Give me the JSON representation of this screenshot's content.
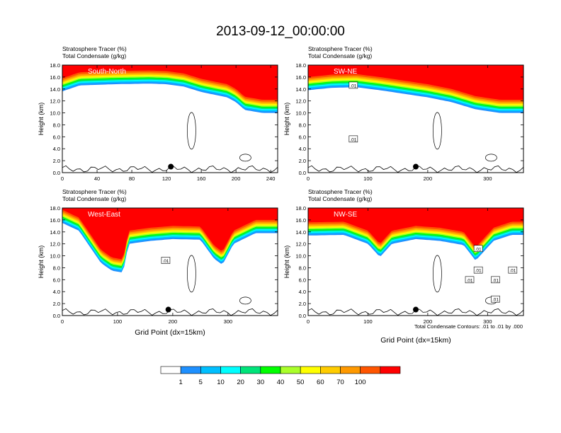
{
  "figure": {
    "title": "2013-09-12_00:00:00",
    "contour_note": "Total Condensate Contours: .01 to .01 by .000"
  },
  "chart_data": [
    {
      "type": "heatmap",
      "panel_label": "South-North",
      "field_label": "Stratosphere Tracer   (%)",
      "contour_label": "Total Condensate   (g/kg)",
      "ylabel": "Height (km)",
      "xlabel": "",
      "xlim": [
        0,
        248
      ],
      "ylim": [
        0,
        18
      ],
      "xticks": [
        0,
        40,
        80,
        120,
        160,
        200,
        240
      ],
      "yticks": [
        "0.0",
        "2.0",
        "4.0",
        "6.0",
        "8.0",
        "10.0",
        "12.0",
        "14.0",
        "16.0",
        "18.0"
      ],
      "tracer_top_km": [
        [
          0,
          13.6
        ],
        [
          20,
          14.6
        ],
        [
          60,
          14.8
        ],
        [
          100,
          14.9
        ],
        [
          120,
          14.8
        ],
        [
          140,
          14.4
        ],
        [
          160,
          13.5
        ],
        [
          180,
          12.9
        ],
        [
          190,
          12.6
        ],
        [
          200,
          11.8
        ],
        [
          210,
          10.5
        ],
        [
          230,
          10.0
        ],
        [
          248,
          10.0
        ]
      ],
      "contours_note": ".01 g/kg contours",
      "contour_labels": [],
      "marker": {
        "x": 125,
        "y": 1.0
      }
    },
    {
      "type": "heatmap",
      "panel_label": "SW-NE",
      "field_label": "Stratosphere Tracer   (%)",
      "contour_label": "Total Condensate   (g/kg)",
      "ylabel": "Height (km)",
      "xlabel": "",
      "xlim": [
        0,
        360
      ],
      "ylim": [
        0,
        18
      ],
      "xticks": [
        0,
        100,
        200,
        300
      ],
      "yticks": [
        "0.0",
        "2.0",
        "4.0",
        "6.0",
        "8.0",
        "10.0",
        "12.0",
        "14.0",
        "16.0",
        "18.0"
      ],
      "tracer_top_km": [
        [
          0,
          13.8
        ],
        [
          40,
          14.2
        ],
        [
          80,
          14.3
        ],
        [
          120,
          13.8
        ],
        [
          160,
          13.2
        ],
        [
          200,
          12.6
        ],
        [
          240,
          11.8
        ],
        [
          280,
          10.6
        ],
        [
          320,
          10.0
        ],
        [
          360,
          10.0
        ]
      ],
      "contour_labels": [
        ".01",
        ".01"
      ],
      "marker": {
        "x": 180,
        "y": 1.0
      }
    },
    {
      "type": "heatmap",
      "panel_label": "West-East",
      "field_label": "Stratosphere Tracer   (%)",
      "contour_label": "Total Condensate   (g/kg)",
      "ylabel": "Height (km)",
      "xlabel": "Grid Point (dx=15km)",
      "xlim": [
        0,
        390
      ],
      "ylim": [
        0,
        18
      ],
      "xticks": [
        0,
        100,
        200,
        300
      ],
      "yticks": [
        "0.0",
        "2.0",
        "4.0",
        "6.0",
        "8.0",
        "10.0",
        "12.0",
        "14.0",
        "16.0",
        "18.0"
      ],
      "tracer_top_km": [
        [
          0,
          15.5
        ],
        [
          30,
          14.2
        ],
        [
          50,
          11.5
        ],
        [
          70,
          8.8
        ],
        [
          90,
          7.5
        ],
        [
          110,
          7.2
        ],
        [
          120,
          12.0
        ],
        [
          160,
          12.5
        ],
        [
          200,
          12.8
        ],
        [
          250,
          12.7
        ],
        [
          275,
          9.5
        ],
        [
          290,
          8.5
        ],
        [
          310,
          12.0
        ],
        [
          350,
          13.8
        ],
        [
          390,
          13.8
        ]
      ],
      "contour_labels": [
        ".01"
      ],
      "marker": {
        "x": 192,
        "y": 1.0
      }
    },
    {
      "type": "heatmap",
      "panel_label": "NW-SE",
      "field_label": "Stratosphere Tracer   (%)",
      "contour_label": "Total Condensate   (g/kg)",
      "ylabel": "Height (km)",
      "xlabel": "Grid Point (dx=15km)",
      "xlim": [
        0,
        360
      ],
      "ylim": [
        0,
        18
      ],
      "xticks": [
        0,
        100,
        200,
        300
      ],
      "yticks": [
        "0.0",
        "2.0",
        "4.0",
        "6.0",
        "8.0",
        "10.0",
        "12.0",
        "14.0",
        "16.0",
        "18.0"
      ],
      "tracer_top_km": [
        [
          0,
          13.4
        ],
        [
          60,
          13.5
        ],
        [
          100,
          12.0
        ],
        [
          120,
          9.8
        ],
        [
          140,
          12.0
        ],
        [
          180,
          12.8
        ],
        [
          220,
          12.5
        ],
        [
          260,
          11.8
        ],
        [
          280,
          9.2
        ],
        [
          310,
          12.5
        ],
        [
          340,
          13.5
        ],
        [
          360,
          13.5
        ]
      ],
      "contour_labels": [
        ".01",
        ".01",
        ".01",
        ".01",
        ".01",
        ".01"
      ],
      "marker": {
        "x": 180,
        "y": 1.0
      }
    }
  ],
  "colorbar": {
    "labels": [
      "1",
      "5",
      "10",
      "20",
      "30",
      "40",
      "50",
      "60",
      "70",
      "100"
    ],
    "colors": [
      "#ffffff",
      "#1e90ff",
      "#00bfff",
      "#00ffff",
      "#00e47a",
      "#00ff00",
      "#aaff2a",
      "#ffff00",
      "#ffcc00",
      "#ff9900",
      "#ff5500",
      "#ff0000"
    ]
  }
}
